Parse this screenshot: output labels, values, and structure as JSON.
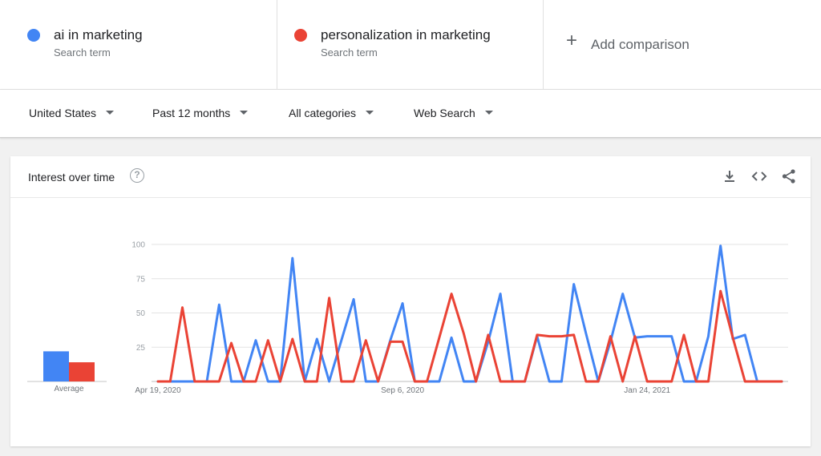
{
  "terms": [
    {
      "name": "ai in marketing",
      "subtitle": "Search term",
      "color": "#4285f4"
    },
    {
      "name": "personalization in marketing",
      "subtitle": "Search term",
      "color": "#ea4335"
    }
  ],
  "add_comparison": "Add comparison",
  "filters": [
    "United States",
    "Past 12 months",
    "All categories",
    "Web Search"
  ],
  "card": {
    "title": "Interest over time",
    "help_icon": "help-circle-icon",
    "tools": [
      "download-icon",
      "embed-code-icon",
      "share-icon"
    ]
  },
  "averages": {
    "label": "Average",
    "values": [
      22,
      14
    ]
  },
  "chart_data": {
    "type": "line",
    "title": "Interest over time",
    "ylim": [
      0,
      100
    ],
    "yticks": [
      25,
      50,
      75,
      100
    ],
    "grid": true,
    "x_tick_labels": [
      "Apr 19, 2020",
      "Sep 6, 2020",
      "Jan 24, 2021"
    ],
    "x": [
      "2020-04-19",
      "2020-04-26",
      "2020-05-03",
      "2020-05-10",
      "2020-05-17",
      "2020-05-24",
      "2020-05-31",
      "2020-06-07",
      "2020-06-14",
      "2020-06-21",
      "2020-06-28",
      "2020-07-05",
      "2020-07-12",
      "2020-07-19",
      "2020-07-26",
      "2020-08-02",
      "2020-08-09",
      "2020-08-16",
      "2020-08-23",
      "2020-08-30",
      "2020-09-06",
      "2020-09-13",
      "2020-09-20",
      "2020-09-27",
      "2020-10-04",
      "2020-10-11",
      "2020-10-18",
      "2020-10-25",
      "2020-11-01",
      "2020-11-08",
      "2020-11-15",
      "2020-11-22",
      "2020-11-29",
      "2020-12-06",
      "2020-12-13",
      "2020-12-20",
      "2020-12-27",
      "2021-01-03",
      "2021-01-10",
      "2021-01-17",
      "2021-01-24",
      "2021-01-31",
      "2021-02-07",
      "2021-02-14",
      "2021-02-21",
      "2021-02-28",
      "2021-03-07",
      "2021-03-14",
      "2021-03-21",
      "2021-03-28",
      "2021-04-04",
      "2021-04-11"
    ],
    "series": [
      {
        "name": "ai in marketing",
        "color": "#4285f4",
        "values": [
          0,
          0,
          0,
          0,
          0,
          56,
          0,
          0,
          30,
          0,
          0,
          90,
          0,
          31,
          0,
          30,
          60,
          0,
          0,
          30,
          57,
          0,
          0,
          0,
          32,
          0,
          0,
          29,
          64,
          0,
          0,
          33,
          0,
          0,
          71,
          35,
          0,
          29,
          64,
          32,
          33,
          33,
          33,
          0,
          0,
          33,
          99,
          31,
          34,
          0,
          0,
          0
        ]
      },
      {
        "name": "personalization in marketing",
        "color": "#ea4335",
        "values": [
          0,
          0,
          54,
          0,
          0,
          0,
          28,
          0,
          0,
          30,
          0,
          31,
          0,
          0,
          61,
          0,
          0,
          30,
          0,
          29,
          29,
          0,
          0,
          32,
          64,
          35,
          0,
          34,
          0,
          0,
          0,
          34,
          33,
          33,
          34,
          0,
          0,
          33,
          0,
          33,
          0,
          0,
          0,
          34,
          0,
          0,
          66,
          32,
          0,
          0,
          0,
          0
        ]
      }
    ]
  }
}
